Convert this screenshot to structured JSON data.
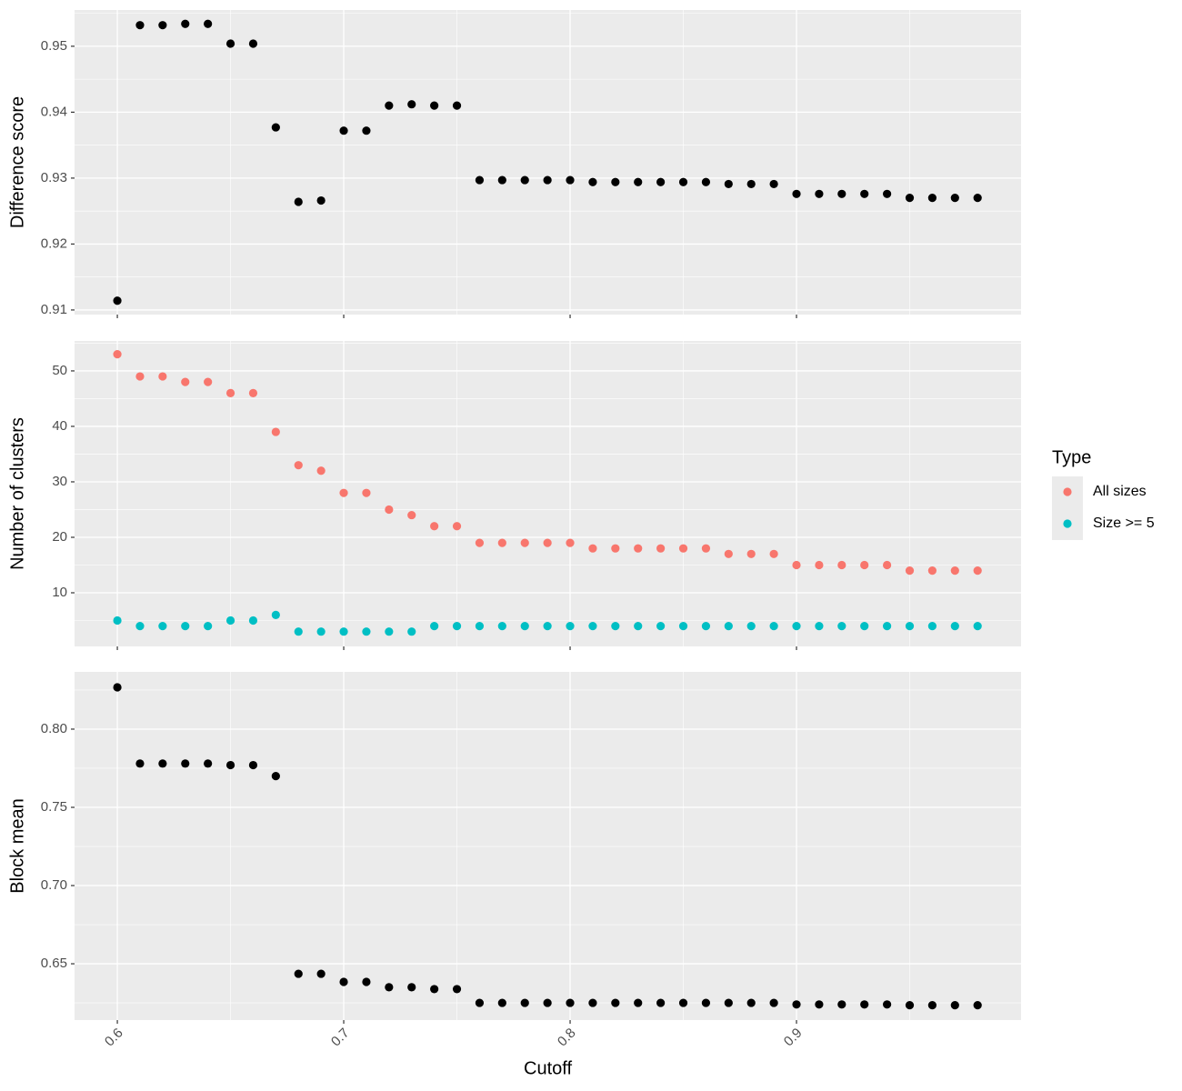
{
  "chart_data": [
    {
      "type": "scatter",
      "ylabel": "Difference score",
      "x": [
        0.6,
        0.61,
        0.62,
        0.63,
        0.64,
        0.65,
        0.66,
        0.67,
        0.68,
        0.69,
        0.7,
        0.71,
        0.72,
        0.73,
        0.74,
        0.75,
        0.76,
        0.77,
        0.78,
        0.79,
        0.8,
        0.81,
        0.82,
        0.83,
        0.84,
        0.85,
        0.86,
        0.87,
        0.88,
        0.89,
        0.9,
        0.91,
        0.92,
        0.93,
        0.94,
        0.95,
        0.96,
        0.97,
        0.98
      ],
      "values": [
        0.9114,
        0.9532,
        0.9532,
        0.9534,
        0.9534,
        0.9504,
        0.9504,
        0.9377,
        0.9264,
        0.9266,
        0.9372,
        0.9372,
        0.941,
        0.9412,
        0.941,
        0.941,
        0.9297,
        0.9297,
        0.9297,
        0.9297,
        0.9297,
        0.9294,
        0.9294,
        0.9294,
        0.9294,
        0.9294,
        0.9294,
        0.9291,
        0.9291,
        0.9291,
        0.9276,
        0.9276,
        0.9276,
        0.9276,
        0.9276,
        0.927,
        0.927,
        0.927,
        0.927
      ],
      "color": "#000000",
      "xlim": [
        0.5811,
        0.9992
      ],
      "xticks": [
        0.6,
        0.7,
        0.8,
        0.9
      ],
      "ylim": [
        0.9093,
        0.9555
      ],
      "yticks": [
        0.91,
        0.92,
        0.93,
        0.94,
        0.95
      ],
      "grid": true
    },
    {
      "type": "scatter",
      "ylabel": "Number of clusters",
      "x": [
        0.6,
        0.61,
        0.62,
        0.63,
        0.64,
        0.65,
        0.66,
        0.67,
        0.68,
        0.69,
        0.7,
        0.71,
        0.72,
        0.73,
        0.74,
        0.75,
        0.76,
        0.77,
        0.78,
        0.79,
        0.8,
        0.81,
        0.82,
        0.83,
        0.84,
        0.85,
        0.86,
        0.87,
        0.88,
        0.89,
        0.9,
        0.91,
        0.92,
        0.93,
        0.94,
        0.95,
        0.96,
        0.97,
        0.98
      ],
      "series": [
        {
          "name": "All sizes",
          "color": "#F8766D",
          "values": [
            53,
            49,
            49,
            48,
            48,
            46,
            46,
            39,
            33,
            32,
            28,
            28,
            25,
            24,
            22,
            22,
            19,
            19,
            19,
            19,
            19,
            18,
            18,
            18,
            18,
            18,
            18,
            17,
            17,
            17,
            15,
            15,
            15,
            15,
            15,
            14,
            14,
            14,
            14
          ]
        },
        {
          "name": "Size >= 5",
          "color": "#00BFC4",
          "values": [
            5,
            4,
            4,
            4,
            4,
            5,
            5,
            6,
            3,
            3,
            3,
            3,
            3,
            3,
            4,
            4,
            4,
            4,
            4,
            4,
            4,
            4,
            4,
            4,
            4,
            4,
            4,
            4,
            4,
            4,
            4,
            4,
            4,
            4,
            4,
            4,
            4,
            4,
            4
          ]
        }
      ],
      "legend_title": "Type",
      "xlim": [
        0.5811,
        0.9992
      ],
      "xticks": [
        0.6,
        0.7,
        0.8,
        0.9
      ],
      "ylim": [
        0.33,
        55.4
      ],
      "yticks": [
        10,
        20,
        30,
        40,
        50
      ],
      "grid": true
    },
    {
      "type": "scatter",
      "ylabel": "Block mean",
      "xlabel": "Cutoff",
      "x": [
        0.6,
        0.61,
        0.62,
        0.63,
        0.64,
        0.65,
        0.66,
        0.67,
        0.68,
        0.69,
        0.7,
        0.71,
        0.72,
        0.73,
        0.74,
        0.75,
        0.76,
        0.77,
        0.78,
        0.79,
        0.8,
        0.81,
        0.82,
        0.83,
        0.84,
        0.85,
        0.86,
        0.87,
        0.88,
        0.89,
        0.9,
        0.91,
        0.92,
        0.93,
        0.94,
        0.95,
        0.96,
        0.97,
        0.98
      ],
      "values": [
        0.8267,
        0.778,
        0.778,
        0.778,
        0.778,
        0.777,
        0.777,
        0.77,
        0.6436,
        0.6436,
        0.6384,
        0.6384,
        0.635,
        0.635,
        0.6338,
        0.6338,
        0.625,
        0.625,
        0.625,
        0.625,
        0.625,
        0.625,
        0.625,
        0.625,
        0.625,
        0.625,
        0.625,
        0.625,
        0.625,
        0.625,
        0.624,
        0.624,
        0.624,
        0.624,
        0.624,
        0.6235,
        0.6235,
        0.6235,
        0.6235
      ],
      "color": "#000000",
      "xlim": [
        0.5811,
        0.9992
      ],
      "xticks": [
        0.6,
        0.7,
        0.8,
        0.9
      ],
      "ylim": [
        0.614,
        0.8366
      ],
      "yticks": [
        {
          "value": 0.65,
          "label": "0.65"
        },
        {
          "value": 0.7,
          "label": "0.70"
        },
        {
          "value": 0.75,
          "label": "0.75"
        },
        {
          "value": 0.8,
          "label": "0.80"
        }
      ],
      "grid": true
    }
  ]
}
